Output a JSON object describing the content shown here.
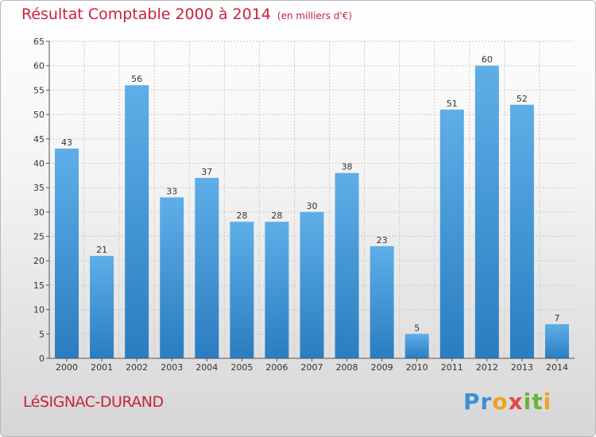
{
  "header": {
    "title": "Résultat Comptable 2000 à 2014",
    "subtitle": "(en milliers d'€)"
  },
  "footer": {
    "city": "LéSIGNAC-DURAND",
    "logo_letters": [
      "P",
      "r",
      "o",
      "x",
      "i",
      "t",
      "i"
    ]
  },
  "colors": {
    "title": "#c8223d",
    "bar_top": "#5eaee8",
    "bar_bottom": "#2a7dc0",
    "grid": "#c9c9c9",
    "axis": "#555555"
  },
  "chart_data": {
    "type": "bar",
    "title": "Résultat Comptable 2000 à 2014",
    "subtitle": "(en milliers d'€)",
    "categories": [
      "2000",
      "2001",
      "2002",
      "2003",
      "2004",
      "2005",
      "2006",
      "2007",
      "2008",
      "2009",
      "2010",
      "2011",
      "2012",
      "2013",
      "2014"
    ],
    "values": [
      43,
      21,
      56,
      33,
      37,
      28,
      28,
      30,
      38,
      23,
      5,
      51,
      60,
      52,
      7
    ],
    "xlabel": "",
    "ylabel": "",
    "ylim": [
      0,
      65
    ],
    "yticks": [
      0,
      5,
      10,
      15,
      20,
      25,
      30,
      35,
      40,
      45,
      50,
      55,
      60,
      65
    ],
    "grid": true,
    "legend": "none"
  }
}
